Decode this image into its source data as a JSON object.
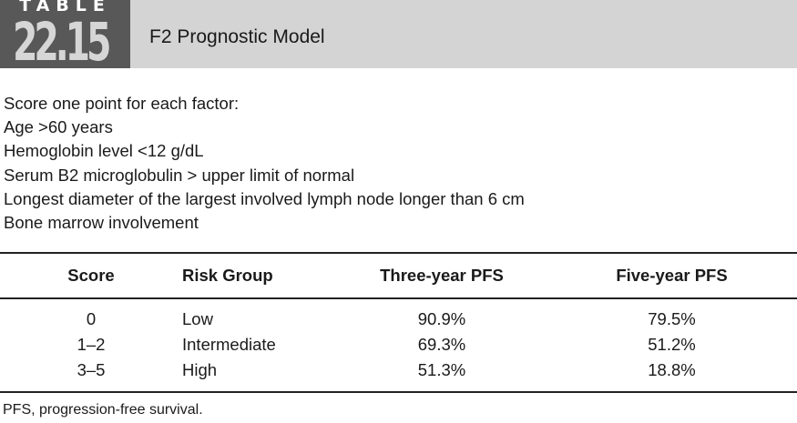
{
  "header": {
    "label": "TABLE",
    "number": "22.15",
    "title": "F2 Prognostic Model",
    "colors": {
      "band": "#d4d4d4",
      "badge": "#585858"
    }
  },
  "intro": [
    "Score one point for each factor:",
    "Age >60 years",
    "Hemoglobin level <12 g/dL",
    "Serum B2 microglobulin > upper limit of normal",
    "Longest diameter of the largest involved lymph node longer than 6 cm",
    "Bone marrow involvement"
  ],
  "table": {
    "columns": [
      "Score",
      "Risk Group",
      "Three-year PFS",
      "Five-year PFS"
    ],
    "rows": [
      [
        "0",
        "Low",
        "90.9%",
        "79.5%"
      ],
      [
        "1–2",
        "Intermediate",
        "69.3%",
        "51.2%"
      ],
      [
        "3–5",
        "High",
        "51.3%",
        "18.8%"
      ]
    ]
  },
  "footnote": "PFS, progression-free survival."
}
